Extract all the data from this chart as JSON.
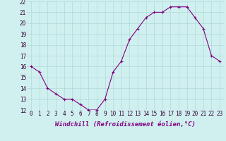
{
  "x": [
    0,
    1,
    2,
    3,
    4,
    5,
    6,
    7,
    8,
    9,
    10,
    11,
    12,
    13,
    14,
    15,
    16,
    17,
    18,
    19,
    20,
    21,
    22,
    23
  ],
  "y": [
    16.0,
    15.5,
    14.0,
    13.5,
    13.0,
    13.0,
    12.5,
    12.0,
    12.0,
    13.0,
    15.5,
    16.5,
    18.5,
    19.5,
    20.5,
    21.0,
    21.0,
    21.5,
    21.5,
    21.5,
    20.5,
    19.5,
    17.0,
    16.5
  ],
  "ylim": [
    12,
    22
  ],
  "yticks": [
    12,
    13,
    14,
    15,
    16,
    17,
    18,
    19,
    20,
    21,
    22
  ],
  "xticks": [
    0,
    1,
    2,
    3,
    4,
    5,
    6,
    7,
    8,
    9,
    10,
    11,
    12,
    13,
    14,
    15,
    16,
    17,
    18,
    19,
    20,
    21,
    22,
    23
  ],
  "xlabel": "Windchill (Refroidissement éolien,°C)",
  "line_color": "#800080",
  "marker": "+",
  "bg_color": "#d0f0f0",
  "grid_color": "#b0d8d8",
  "label_fontsize": 6.5,
  "tick_fontsize": 5.5,
  "figwidth": 3.2,
  "figheight": 2.0,
  "dpi": 100
}
